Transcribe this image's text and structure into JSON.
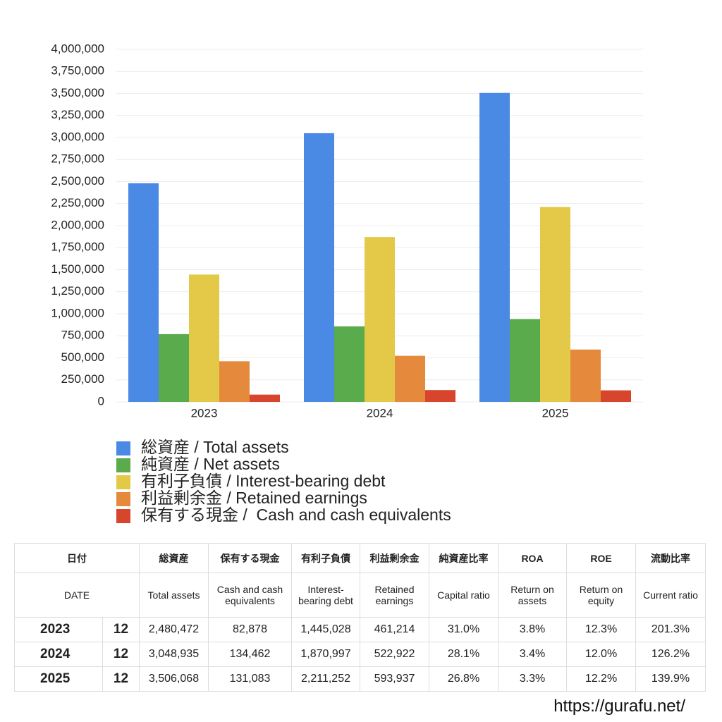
{
  "chart_data": {
    "type": "bar",
    "categories": [
      "2023",
      "2024",
      "2025"
    ],
    "series": [
      {
        "name": "総資産 / Total assets",
        "color": "#4a89e4",
        "values": [
          2480472,
          3048935,
          3506068
        ]
      },
      {
        "name": "純資産 / Net assets",
        "color": "#5aab4c",
        "values": [
          769000,
          857000,
          940000
        ]
      },
      {
        "name": "有利子負債 / Interest-bearing debt",
        "color": "#e4c948",
        "values": [
          1445028,
          1870997,
          2211252
        ]
      },
      {
        "name": "利益剰余金 / Retained earnings",
        "color": "#e58a3c",
        "values": [
          461214,
          522922,
          593937
        ]
      },
      {
        "name": "保有する現金 /  Cash and cash equivalents",
        "color": "#d8452d",
        "values": [
          82878,
          134462,
          131083
        ]
      }
    ],
    "ylim": [
      0,
      4000000
    ],
    "yticks": [
      0,
      {
        "value": 250000,
        "label": "250,000"
      },
      {
        "value": 500000,
        "label": "500,000"
      },
      {
        "value": 750000,
        "label": "750,000"
      },
      {
        "value": 1000000,
        "label": "1,000,000"
      },
      {
        "value": 1250000,
        "label": "1,250,000"
      },
      {
        "value": 1500000,
        "label": "1,500,000"
      },
      {
        "value": 1750000,
        "label": "1,750,000"
      },
      {
        "value": 2000000,
        "label": "2,000,000"
      },
      {
        "value": 2250000,
        "label": "2,250,000"
      },
      {
        "value": 2500000,
        "label": "2,500,000"
      },
      {
        "value": 2750000,
        "label": "2,750,000"
      },
      {
        "value": 3000000,
        "label": "3,000,000"
      },
      {
        "value": 3250000,
        "label": "3,250,000"
      },
      {
        "value": 3500000,
        "label": "3,500,000"
      },
      {
        "value": 3750000,
        "label": "3,750,000"
      },
      {
        "value": 4000000,
        "label": "4,000,000"
      }
    ],
    "grid": true
  },
  "table": {
    "header_ja": [
      "日付",
      "総資産",
      "保有する現金",
      "有利子負債",
      "利益剰余金",
      "純資産比率",
      "ROA",
      "ROE",
      "流動比率"
    ],
    "header_en": [
      "DATE",
      "Total assets",
      "Cash and cash equivalents",
      "Interest-bearing debt",
      "Retained earnings",
      "Capital ratio",
      "Return on assets",
      "Return on equity",
      "Current ratio"
    ],
    "rows": [
      [
        "2023",
        "12",
        "2,480,472",
        "82,878",
        "1,445,028",
        "461,214",
        "31.0%",
        "3.8%",
        "12.3%",
        "201.3%"
      ],
      [
        "2024",
        "12",
        "3,048,935",
        "134,462",
        "1,870,997",
        "522,922",
        "28.1%",
        "3.4%",
        "12.0%",
        "126.2%"
      ],
      [
        "2025",
        "12",
        "3,506,068",
        "131,083",
        "2,211,252",
        "593,937",
        "26.8%",
        "3.3%",
        "12.2%",
        "139.9%"
      ]
    ]
  },
  "footer": "https://gurafu.net/"
}
